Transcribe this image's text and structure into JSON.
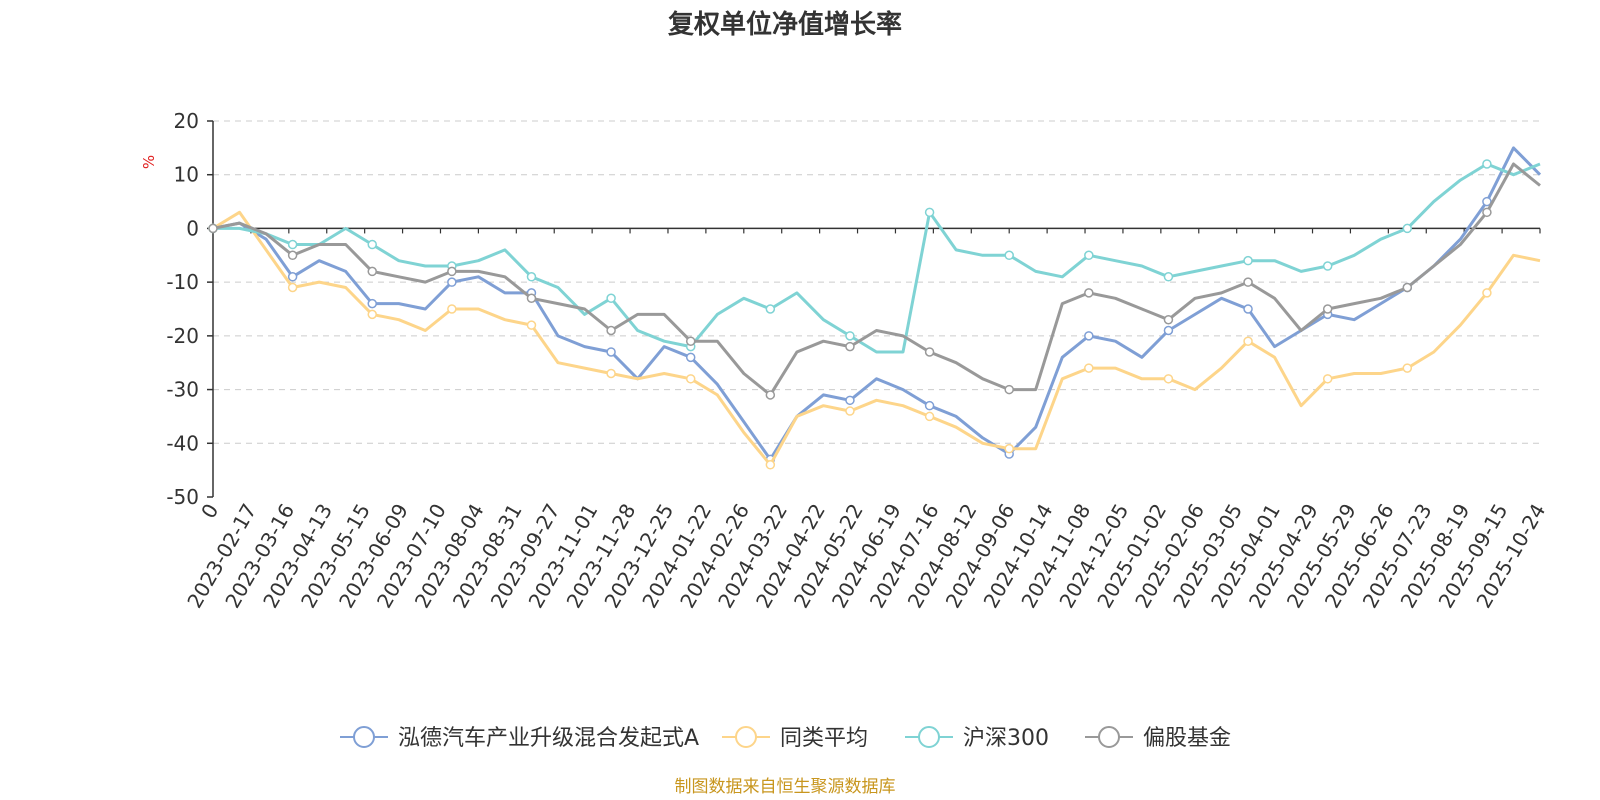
{
  "colors": {
    "series": [
      "#7f9fd5",
      "#fdd58a",
      "#7fd3d4",
      "#999999"
    ],
    "unit": "#e02020",
    "source": "#c8961e"
  },
  "chart_data": {
    "type": "line",
    "title": "复权单位净值增长率",
    "ylabel": "%",
    "xlabel": "",
    "ylim": [
      -50,
      20
    ],
    "yticks": [
      20,
      10,
      0,
      -10,
      -20,
      -30,
      -40,
      -50
    ],
    "x_tick_labels": [
      "0",
      "2023-02-17",
      "2023-03-16",
      "2023-04-13",
      "2023-05-15",
      "2023-06-09",
      "2023-07-10",
      "2023-08-04",
      "2023-08-31",
      "2023-09-27",
      "2023-11-01",
      "2023-11-28",
      "2023-12-25",
      "2024-01-22",
      "2024-02-26",
      "2024-03-22",
      "2024-04-22",
      "2024-05-22",
      "2024-06-19",
      "2024-07-16",
      "2024-08-12",
      "2024-09-06",
      "2024-10-14",
      "2024-11-08",
      "2024-12-05",
      "2025-01-02",
      "2025-02-06",
      "2025-03-05",
      "2025-04-01",
      "2025-04-29",
      "2025-05-29",
      "2025-06-26",
      "2025-07-23",
      "2025-08-19",
      "2025-09-15",
      "2025-10-24"
    ],
    "legend": [
      "泓德汽车产业升级混合发起式A",
      "同类平均",
      "沪深300",
      "偏股基金"
    ],
    "series": [
      {
        "name": "泓德汽车产业升级混合发起式A",
        "values": [
          0,
          1,
          -2,
          -9,
          -6,
          -8,
          -14,
          -14,
          -15,
          -10,
          -9,
          -12,
          -12,
          -20,
          -22,
          -23,
          -28,
          -22,
          -24,
          -29,
          -36,
          -43,
          -35,
          -31,
          -32,
          -28,
          -30,
          -33,
          -35,
          -39,
          -42,
          -37,
          -24,
          -20,
          -21,
          -24,
          -19,
          -16,
          -13,
          -15,
          -22,
          -19,
          -16,
          -17,
          -14,
          -11,
          -7,
          -2,
          5,
          15,
          10
        ]
      },
      {
        "name": "同类平均",
        "values": [
          0,
          3,
          -4,
          -11,
          -10,
          -11,
          -16,
          -17,
          -19,
          -15,
          -15,
          -17,
          -18,
          -25,
          -26,
          -27,
          -28,
          -27,
          -28,
          -31,
          -38,
          -44,
          -35,
          -33,
          -34,
          -32,
          -33,
          -35,
          -37,
          -40,
          -41,
          -41,
          -28,
          -26,
          -26,
          -28,
          -28,
          -30,
          -26,
          -21,
          -24,
          -33,
          -28,
          -27,
          -27,
          -26,
          -23,
          -18,
          -12,
          -5,
          -6
        ]
      },
      {
        "name": "沪深300",
        "values": [
          0,
          0,
          -1,
          -3,
          -3,
          0,
          -3,
          -6,
          -7,
          -7,
          -6,
          -4,
          -9,
          -11,
          -16,
          -13,
          -19,
          -21,
          -22,
          -16,
          -13,
          -15,
          -12,
          -17,
          -20,
          -23,
          -23,
          3,
          -4,
          -5,
          -5,
          -8,
          -9,
          -5,
          -6,
          -7,
          -9,
          -8,
          -7,
          -6,
          -6,
          -8,
          -7,
          -5,
          -2,
          0,
          5,
          9,
          12,
          10,
          12
        ]
      },
      {
        "name": "偏股基金",
        "values": [
          0,
          1,
          -1,
          -5,
          -3,
          -3,
          -8,
          -9,
          -10,
          -8,
          -8,
          -9,
          -13,
          -14,
          -15,
          -19,
          -16,
          -16,
          -21,
          -21,
          -27,
          -31,
          -23,
          -21,
          -22,
          -19,
          -20,
          -23,
          -25,
          -28,
          -30,
          -30,
          -14,
          -12,
          -13,
          -15,
          -17,
          -13,
          -12,
          -10,
          -13,
          -19,
          -15,
          -14,
          -13,
          -11,
          -7,
          -3,
          3,
          12,
          8
        ]
      }
    ]
  },
  "source_text": "制图数据来自恒生聚源数据库"
}
